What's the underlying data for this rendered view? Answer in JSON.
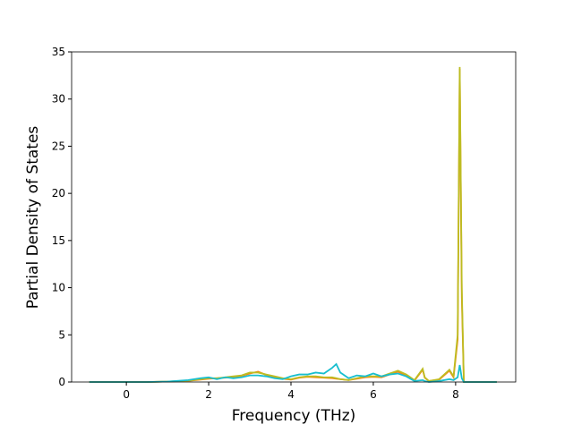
{
  "chart_data": {
    "type": "line",
    "xlabel": "Frequency (THz)",
    "ylabel": "Partial Density of States",
    "x": [
      -0.9,
      0,
      0.5,
      1.0,
      1.5,
      1.8,
      2.0,
      2.2,
      2.4,
      2.6,
      2.8,
      3.0,
      3.2,
      3.4,
      3.6,
      3.8,
      4.0,
      4.2,
      4.4,
      4.6,
      4.8,
      5.0,
      5.1,
      5.2,
      5.4,
      5.6,
      5.8,
      6.0,
      6.2,
      6.4,
      6.6,
      6.8,
      7.0,
      7.2,
      7.25,
      7.35,
      7.6,
      7.85,
      7.95,
      8.05,
      8.1,
      8.15,
      8.2,
      8.4,
      9.0
    ],
    "series": [
      {
        "color": "#ff7f0e",
        "values": [
          0,
          0,
          0,
          0.05,
          0.12,
          0.25,
          0.35,
          0.4,
          0.45,
          0.55,
          0.65,
          0.9,
          1.1,
          0.75,
          0.5,
          0.35,
          0.25,
          0.45,
          0.55,
          0.5,
          0.45,
          0.4,
          0.35,
          0.3,
          0.2,
          0.35,
          0.5,
          0.55,
          0.5,
          0.8,
          1.1,
          0.7,
          0.15,
          1.3,
          0.45,
          0.1,
          0.25,
          1.2,
          0.5,
          4.5,
          33.2,
          9,
          0,
          0,
          0
        ]
      },
      {
        "color": "#bcbd22",
        "values": [
          0,
          0,
          0,
          0.05,
          0.15,
          0.3,
          0.4,
          0.4,
          0.5,
          0.6,
          0.7,
          1.0,
          1.0,
          0.8,
          0.6,
          0.4,
          0.3,
          0.5,
          0.6,
          0.6,
          0.5,
          0.5,
          0.4,
          0.3,
          0.2,
          0.4,
          0.6,
          0.6,
          0.6,
          0.9,
          1.2,
          0.8,
          0.2,
          1.4,
          0.5,
          0.1,
          0.3,
          1.3,
          0.6,
          5,
          33.4,
          10,
          0,
          0,
          0
        ]
      },
      {
        "color": "#17becf",
        "values": [
          0,
          0,
          0,
          0.05,
          0.2,
          0.4,
          0.5,
          0.3,
          0.5,
          0.4,
          0.5,
          0.7,
          0.7,
          0.6,
          0.4,
          0.3,
          0.6,
          0.8,
          0.8,
          1.0,
          0.9,
          1.5,
          1.9,
          1.0,
          0.4,
          0.7,
          0.6,
          0.9,
          0.6,
          0.8,
          0.9,
          0.6,
          0.1,
          0.2,
          0.1,
          0,
          0.1,
          0.3,
          0.2,
          0.5,
          1.8,
          0.4,
          0,
          0,
          0
        ]
      }
    ],
    "xlim": [
      -1.33,
      9.46
    ],
    "xticks": [
      0,
      2,
      4,
      6,
      8
    ],
    "ylim": [
      0,
      35
    ],
    "yticks": [
      0,
      5,
      10,
      15,
      20,
      25,
      30,
      35
    ]
  }
}
